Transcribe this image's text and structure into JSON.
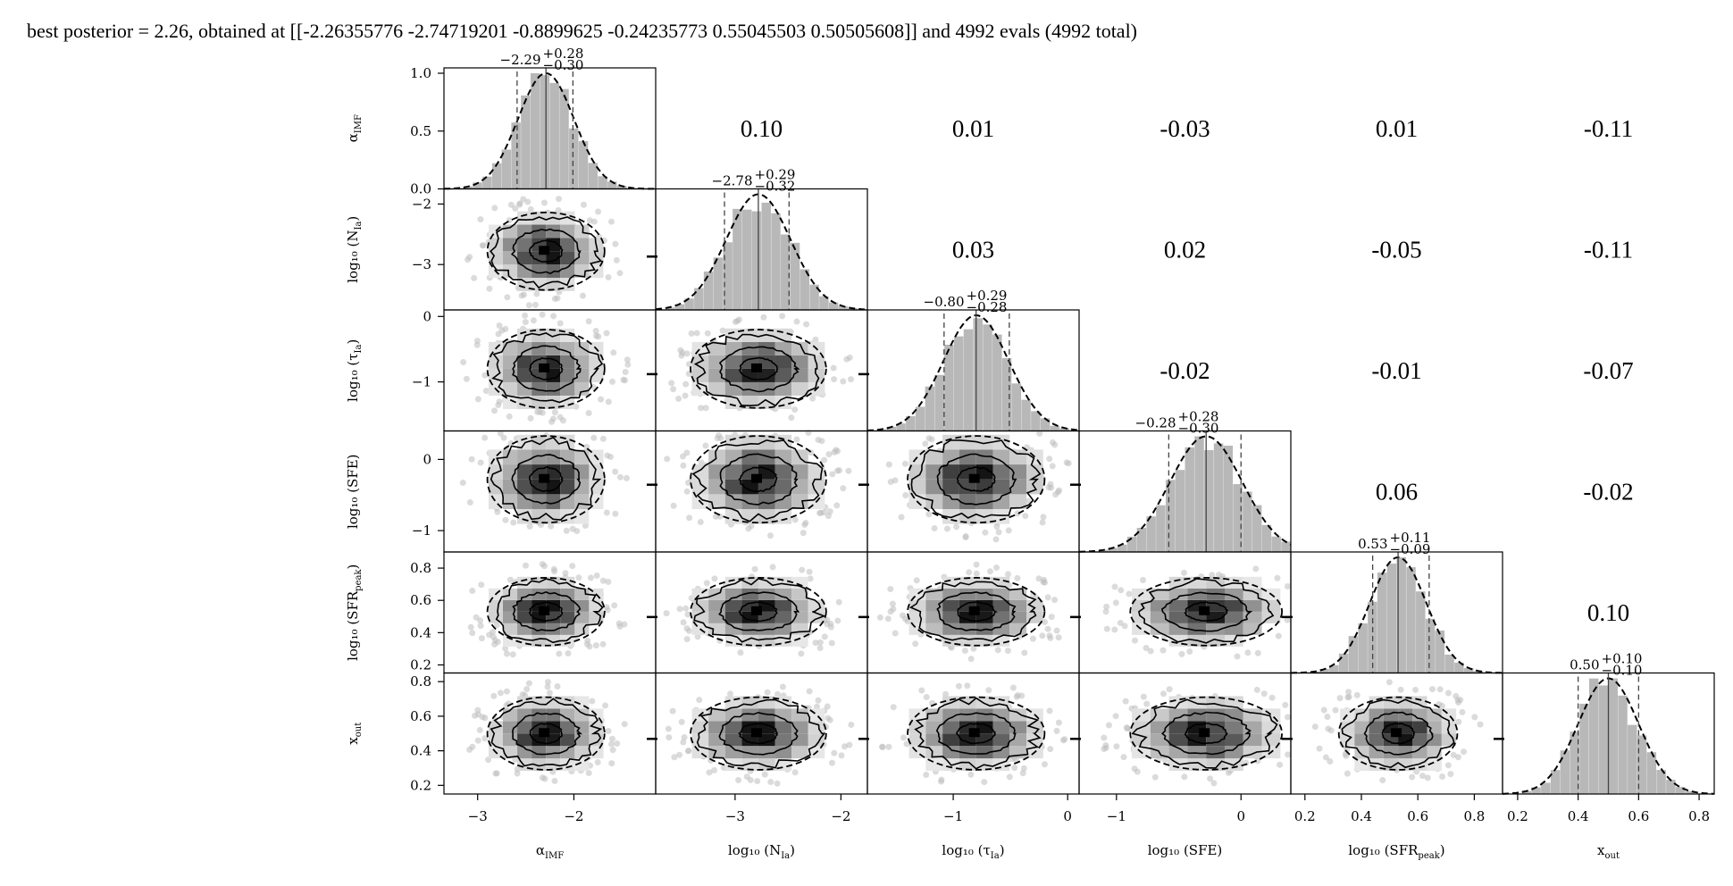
{
  "header": {
    "title": "best posterior = 2.26, obtained at [[-2.26355776 -2.74719201 -0.8899625 -0.24235773 0.55045503 0.50505608]] and 4992 evals (4992 total)"
  },
  "chart_data": {
    "type": "corner",
    "parameters": [
      {
        "label": "α_IMF",
        "median": -2.29,
        "plus": 0.28,
        "minus": 0.3,
        "range": [
          -3.35,
          -1.15
        ],
        "title": "−2.29",
        "title_plus": "+0.28",
        "title_minus": "−0.30",
        "ticks": [
          -3,
          -2
        ],
        "tick_labels": [
          "−3",
          "−2"
        ]
      },
      {
        "label": "log10 (N_Ia)",
        "median": -2.78,
        "plus": 0.29,
        "minus": 0.32,
        "range": [
          -3.75,
          -1.75
        ],
        "title": "−2.78",
        "title_plus": "+0.29",
        "title_minus": "−0.32",
        "ticks": [
          -3,
          -2
        ],
        "tick_labels": [
          "−3",
          "−2"
        ]
      },
      {
        "label": "log10 (τ_Ia)",
        "median": -0.8,
        "plus": 0.29,
        "minus": 0.28,
        "range": [
          -1.75,
          0.1
        ],
        "title": "−0.80",
        "title_plus": "+0.29",
        "title_minus": "−0.28",
        "ticks": [
          -1,
          0
        ],
        "tick_labels": [
          "−1",
          "0"
        ]
      },
      {
        "label": "log10 (SFE)",
        "median": -0.28,
        "plus": 0.28,
        "minus": 0.3,
        "range": [
          -1.3,
          0.4
        ],
        "title": "−0.28",
        "title_plus": "+0.28",
        "title_minus": "−0.30",
        "ticks": [
          -1,
          0
        ],
        "tick_labels": [
          "−1",
          "0"
        ]
      },
      {
        "label": "log10 (SFR_peak)",
        "median": 0.53,
        "plus": 0.11,
        "minus": 0.09,
        "range": [
          0.15,
          0.9
        ],
        "title": "0.53",
        "title_plus": "+0.11",
        "title_minus": "−0.09",
        "ticks": [
          0.2,
          0.4,
          0.6,
          0.8
        ],
        "tick_labels": [
          "0.2",
          "0.4",
          "0.6",
          "0.8"
        ]
      },
      {
        "label": "x_out",
        "median": 0.5,
        "plus": 0.1,
        "minus": 0.1,
        "range": [
          0.15,
          0.85
        ],
        "title": "0.50",
        "title_plus": "+0.10",
        "title_minus": "−0.10",
        "ticks": [
          0.2,
          0.4,
          0.6,
          0.8
        ],
        "tick_labels": [
          "0.2",
          "0.4",
          "0.6",
          "0.8"
        ]
      }
    ],
    "y_axis_labels": [
      {
        "base": "α",
        "sub": "IMF"
      },
      {
        "base": "log₁₀ (N",
        "sub": "Ia",
        "tail": ")"
      },
      {
        "base": "log₁₀ (τ",
        "sub": "Ia",
        "tail": ")"
      },
      {
        "base": "log₁₀ (SFE)",
        "sub": "",
        "tail": ""
      },
      {
        "base": "log₁₀ (SFR",
        "sub": "peak",
        "tail": ")"
      },
      {
        "base": "x",
        "sub": "out"
      }
    ],
    "x_axis_labels": [
      {
        "base": "α",
        "sub": "IMF"
      },
      {
        "base": "log₁₀ (N",
        "sub": "Ia",
        "tail": ")"
      },
      {
        "base": "log₁₀ (τ",
        "sub": "Ia",
        "tail": ")"
      },
      {
        "base": "log₁₀ (SFE)",
        "sub": "",
        "tail": ""
      },
      {
        "base": "log₁₀ (SFR",
        "sub": "peak",
        "tail": ")"
      },
      {
        "base": "x",
        "sub": "out"
      }
    ],
    "diag0_yticks": [
      0.0,
      0.5,
      1.0
    ],
    "diag0_yticklabels": [
      "0.0",
      "0.5",
      "1.0"
    ],
    "correlations": [
      {
        "row": 0,
        "col": 1,
        "value": "0.10"
      },
      {
        "row": 0,
        "col": 2,
        "value": "0.01"
      },
      {
        "row": 0,
        "col": 3,
        "value": "-0.03"
      },
      {
        "row": 0,
        "col": 4,
        "value": "0.01"
      },
      {
        "row": 0,
        "col": 5,
        "value": "-0.11"
      },
      {
        "row": 1,
        "col": 2,
        "value": "0.03"
      },
      {
        "row": 1,
        "col": 3,
        "value": "0.02"
      },
      {
        "row": 1,
        "col": 4,
        "value": "-0.05"
      },
      {
        "row": 1,
        "col": 5,
        "value": "-0.11"
      },
      {
        "row": 2,
        "col": 3,
        "value": "-0.02"
      },
      {
        "row": 2,
        "col": 4,
        "value": "-0.01"
      },
      {
        "row": 2,
        "col": 5,
        "value": "-0.07"
      },
      {
        "row": 3,
        "col": 4,
        "value": "0.06"
      },
      {
        "row": 3,
        "col": 5,
        "value": "-0.02"
      },
      {
        "row": 4,
        "col": 5,
        "value": "0.10"
      }
    ],
    "colors": {
      "hist": "#b8b8b8",
      "contour": "#000000",
      "scatter": "#bdbdbd"
    }
  }
}
